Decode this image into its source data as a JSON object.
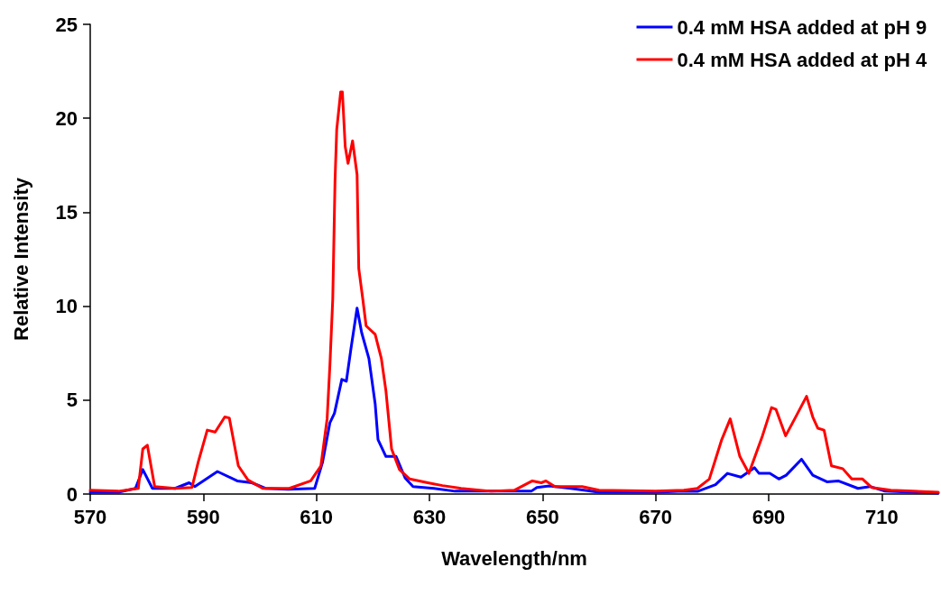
{
  "chart_data": {
    "type": "line",
    "xlabel": "Wavelength/nm",
    "ylabel": "Relative Intensity",
    "xlim": [
      570,
      720
    ],
    "xticks": [
      570,
      590,
      610,
      630,
      650,
      670,
      690,
      710
    ],
    "ylim": [
      0,
      25
    ],
    "yticks": [
      0,
      5,
      10,
      15,
      20,
      25
    ],
    "grid": false,
    "legend": "top right",
    "marker": "none",
    "line_style": "solid",
    "series": [
      {
        "name": "0.4 mM HSA added at pH 9",
        "color": "#0000ff",
        "x": [
          570,
          575,
          578,
          579.3,
          581,
          585,
          587.5,
          588.5,
          592.5,
          596,
          598.6,
          601,
          605,
          609.7,
          611.1,
          612.4,
          613.2,
          614.5,
          615.3,
          616.1,
          617.2,
          618,
          619.3,
          620.4,
          620.9,
          622.3,
          624.1,
          625.7,
          627.1,
          630.8,
          634.5,
          640,
          648,
          649,
          651.2,
          655,
          660,
          670,
          675,
          677.4,
          680.6,
          682.7,
          685.1,
          687.5,
          688.3,
          690.2,
          691.8,
          693.1,
          695.8,
          697.8,
          700.3,
          702.3,
          705.8,
          707.9,
          710.6,
          720
        ],
        "values": [
          0.1,
          0.1,
          0.3,
          1.3,
          0.3,
          0.3,
          0.6,
          0.4,
          1.2,
          0.7,
          0.6,
          0.3,
          0.25,
          0.3,
          1.7,
          3.8,
          4.3,
          6.1,
          6,
          7.7,
          9.9,
          8.6,
          7.2,
          4.8,
          2.9,
          2,
          2,
          0.85,
          0.4,
          0.3,
          0.15,
          0.15,
          0.15,
          0.35,
          0.43,
          0.3,
          0.1,
          0.1,
          0.15,
          0.14,
          0.5,
          1.1,
          0.9,
          1.4,
          1.1,
          1.1,
          0.8,
          1,
          1.85,
          1,
          0.65,
          0.7,
          0.3,
          0.4,
          0.15,
          0.05
        ]
      },
      {
        "name": "0.4 mM HSA added at pH 4",
        "color": "#ff0000",
        "x": [
          570,
          575,
          578.5,
          579.3,
          580.1,
          581.4,
          585,
          588,
          589.1,
          590.7,
          592.1,
          593.8,
          594.6,
          596.2,
          597.9,
          600.5,
          605.2,
          609,
          610.8,
          611.9,
          612.4,
          612.9,
          613.3,
          613.6,
          614.3,
          614.6,
          615.1,
          615.6,
          616.4,
          617.2,
          617.5,
          618.2,
          618.8,
          620.4,
          621.5,
          622.3,
          623.3,
          624.7,
          626.5,
          629.7,
          632.3,
          635.6,
          640.9,
          645,
          648.2,
          649.8,
          650.6,
          652.2,
          657,
          660,
          670,
          675,
          677.4,
          679.5,
          681.7,
          683.2,
          684.9,
          686.5,
          688.9,
          690.5,
          691.3,
          693,
          694.6,
          696.7,
          697.8,
          698.7,
          699.8,
          701.1,
          703.1,
          704.7,
          706.6,
          708.2,
          711.6,
          720
        ],
        "values": [
          0.2,
          0.15,
          0.3,
          2.4,
          2.6,
          0.4,
          0.3,
          0.35,
          1.7,
          3.4,
          3.3,
          4.1,
          4.05,
          1.5,
          0.75,
          0.3,
          0.3,
          0.7,
          1.5,
          4,
          6.9,
          10.4,
          16.7,
          19.4,
          21.4,
          21.4,
          18.5,
          17.6,
          18.8,
          17,
          12,
          10.4,
          8.95,
          8.5,
          7.2,
          5.5,
          2.4,
          1.3,
          0.8,
          0.6,
          0.45,
          0.3,
          0.15,
          0.2,
          0.7,
          0.6,
          0.7,
          0.4,
          0.4,
          0.2,
          0.15,
          0.2,
          0.3,
          0.8,
          2.9,
          4,
          2,
          1.1,
          3.1,
          4.6,
          4.5,
          3.1,
          4,
          5.2,
          4.1,
          3.5,
          3.4,
          1.5,
          1.35,
          0.8,
          0.8,
          0.35,
          0.2,
          0.1
        ]
      }
    ]
  }
}
